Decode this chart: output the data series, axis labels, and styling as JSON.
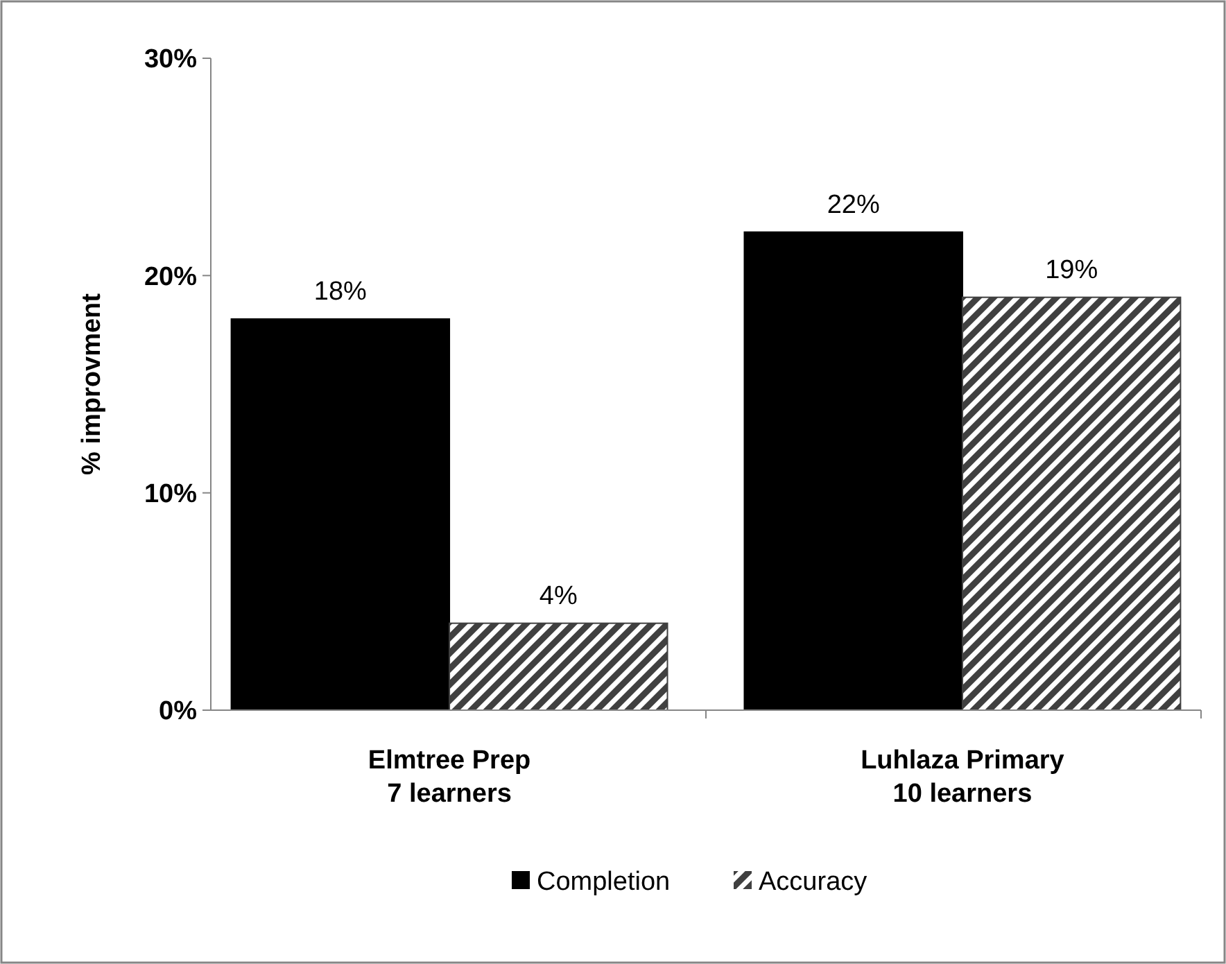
{
  "chart_data": {
    "type": "bar",
    "ylabel": "% improvment",
    "categories": [
      "Elmtree Prep\n7 learners",
      "Luhlaza Primary\n10 learners"
    ],
    "series": [
      {
        "name": "Completion",
        "color": "#000000",
        "values": [
          18,
          22
        ],
        "value_labels": [
          "18%",
          "22%"
        ]
      },
      {
        "name": "Accuracy",
        "color": "#404040",
        "values": [
          4,
          19
        ],
        "value_labels": [
          "4%",
          "19%"
        ]
      }
    ],
    "ylim": [
      0,
      30
    ],
    "yticks": [
      {
        "value": 0,
        "label": "0%"
      },
      {
        "value": 10,
        "label": "10%"
      },
      {
        "value": 20,
        "label": "20%"
      },
      {
        "value": 30,
        "label": "30%"
      }
    ],
    "legend": "bottom",
    "grid": false
  }
}
